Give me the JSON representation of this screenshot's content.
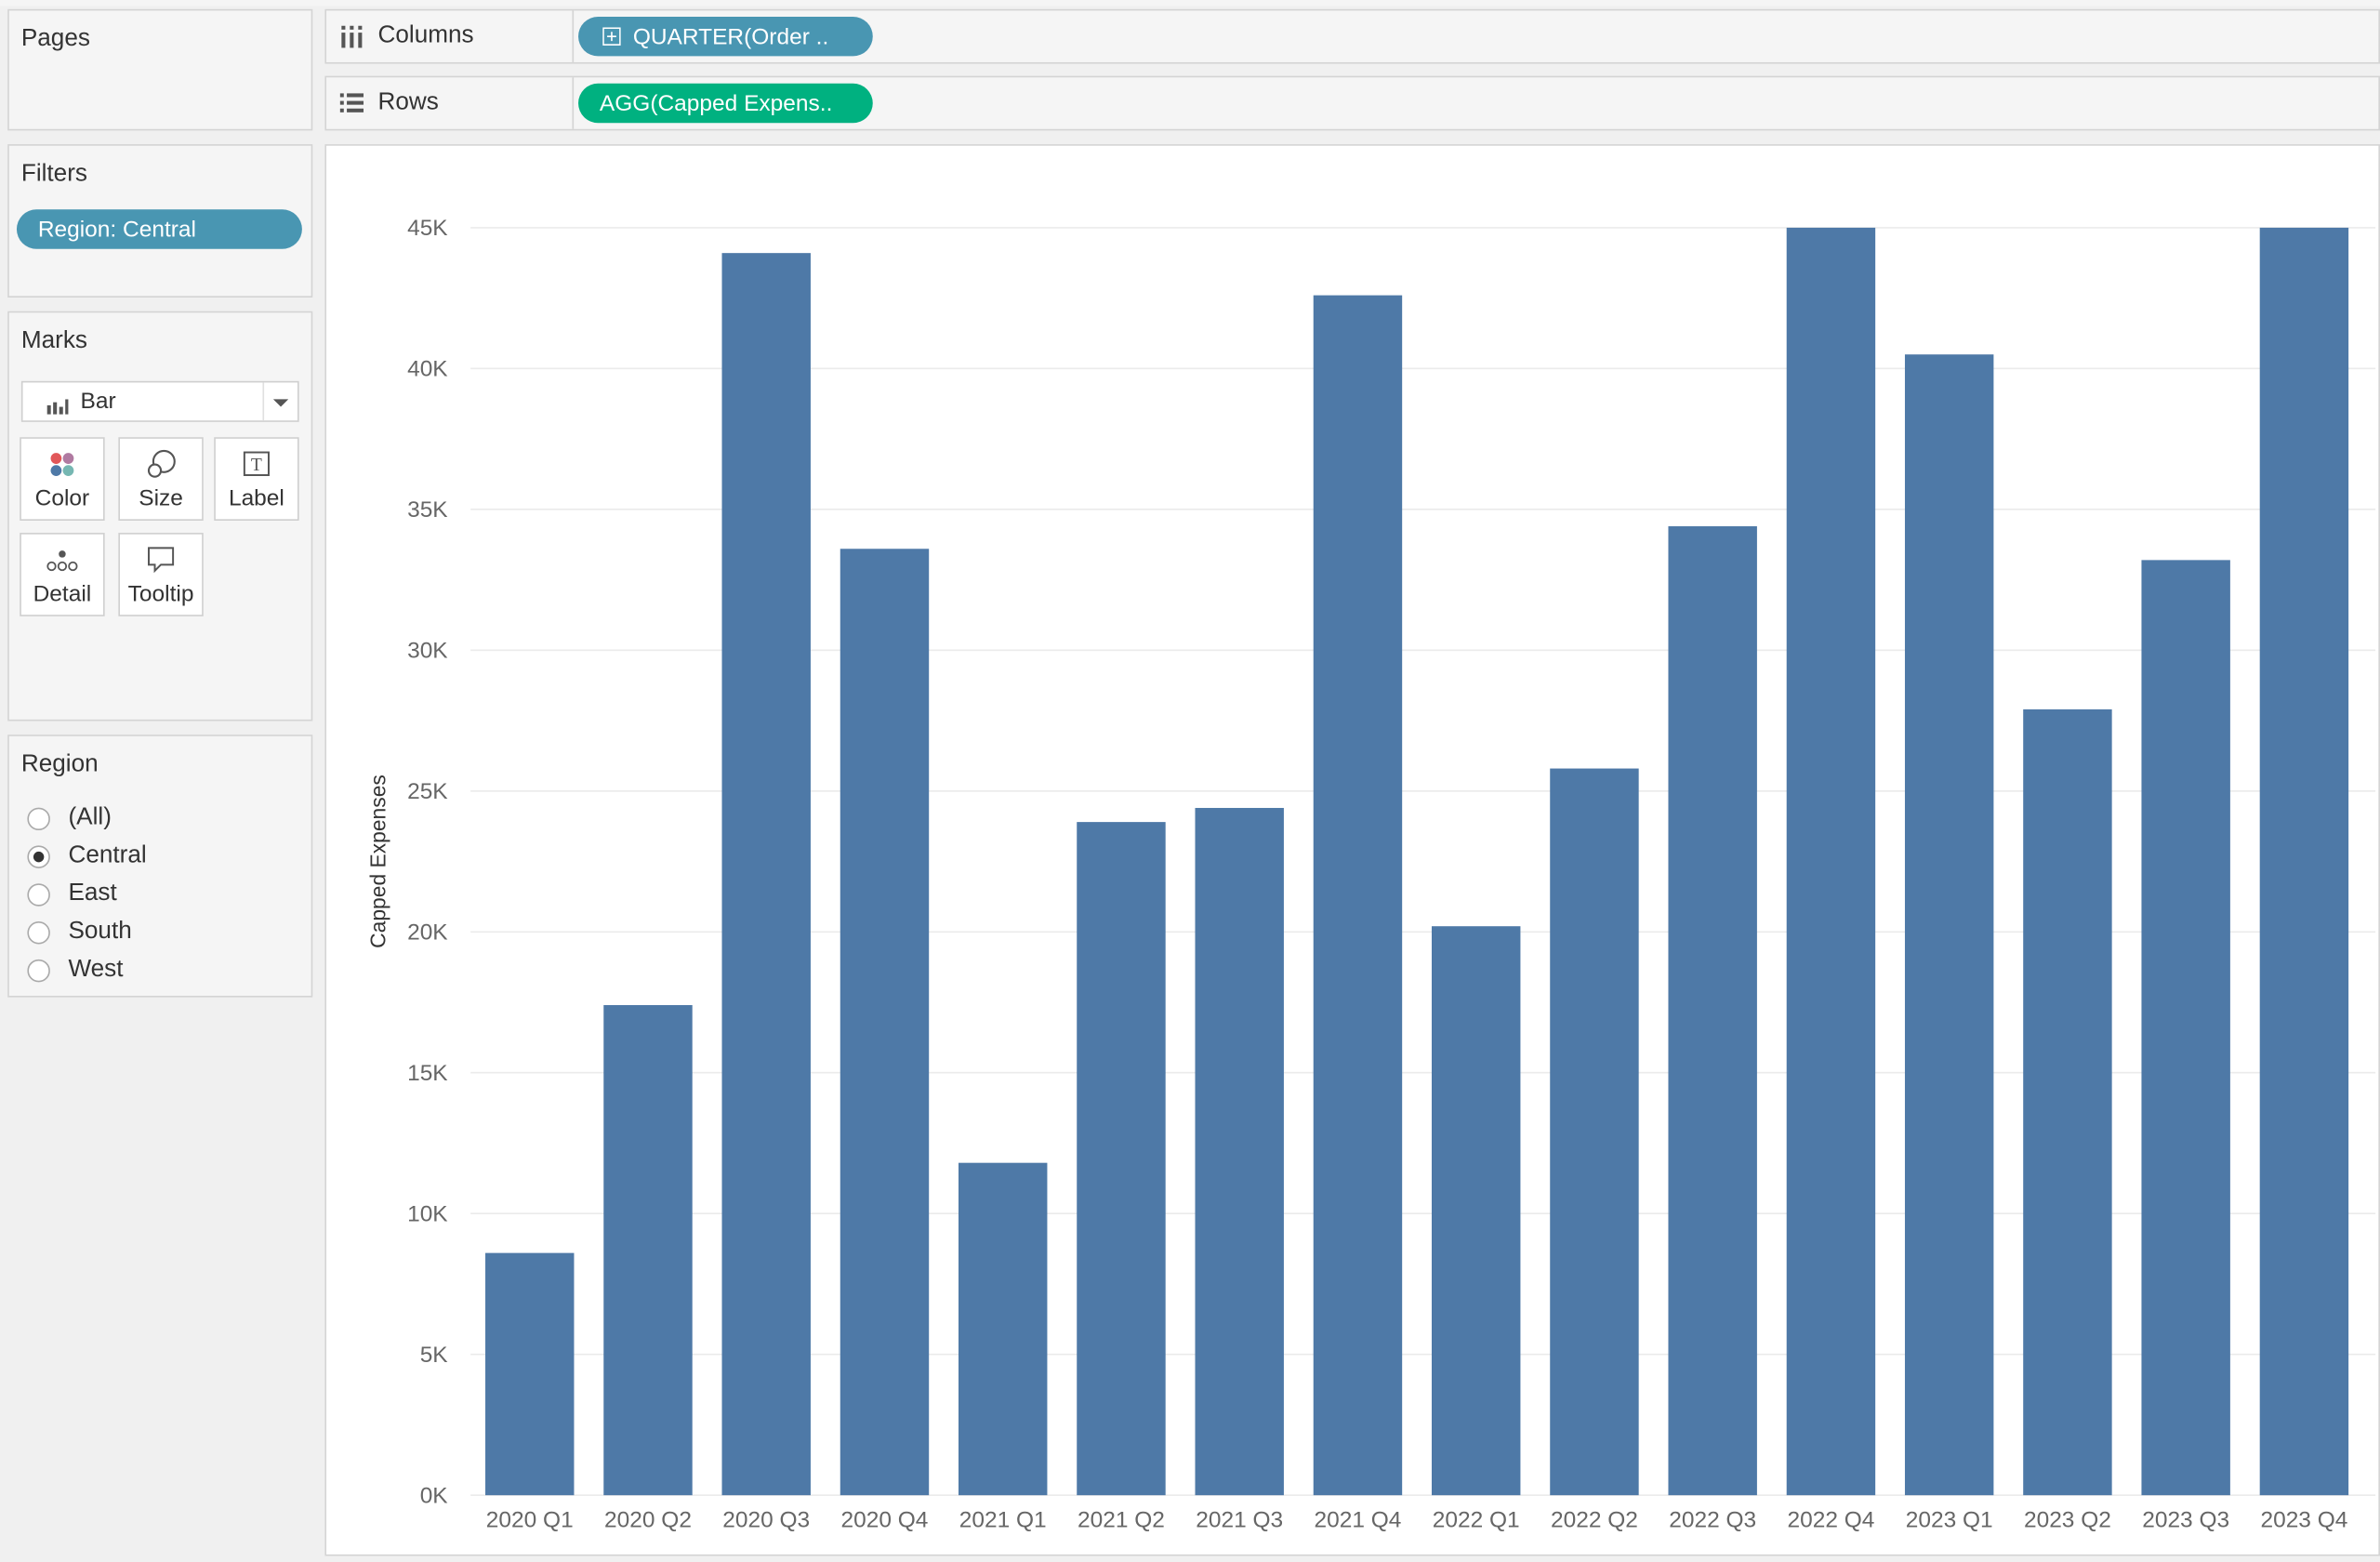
{
  "pages_card": {
    "title": "Pages"
  },
  "filters_card": {
    "title": "Filters",
    "filter_pill": "Region: Central"
  },
  "marks_card": {
    "title": "Marks",
    "mark_type": "Bar",
    "buttons": [
      {
        "label": "Color",
        "icon": "color-icon"
      },
      {
        "label": "Size",
        "icon": "size-icon"
      },
      {
        "label": "Label",
        "icon": "label-icon"
      },
      {
        "label": "Detail",
        "icon": "detail-icon"
      },
      {
        "label": "Tooltip",
        "icon": "tooltip-icon"
      }
    ]
  },
  "region_card": {
    "title": "Region",
    "options": [
      "(All)",
      "Central",
      "East",
      "South",
      "West"
    ],
    "selected": "Central"
  },
  "shelves": {
    "columns_label": "Columns",
    "columns_pill": "QUARTER(Order ..",
    "rows_label": "Rows",
    "rows_pill": "AGG(Capped Expens.."
  },
  "colors": {
    "bar": "#4e79a7",
    "dimension_pill": "#4996b2",
    "measure_pill": "#00b180"
  },
  "chart_data": {
    "type": "bar",
    "ylabel": "Capped Expenses",
    "xlabel": "",
    "categories": [
      "2020 Q1",
      "2020 Q2",
      "2020 Q3",
      "2020 Q4",
      "2021 Q1",
      "2021 Q2",
      "2021 Q3",
      "2021 Q4",
      "2022 Q1",
      "2022 Q2",
      "2022 Q3",
      "2022 Q4",
      "2023 Q1",
      "2023 Q2",
      "2023 Q3",
      "2023 Q4"
    ],
    "values": [
      8600,
      17400,
      44100,
      33600,
      11800,
      23900,
      24400,
      42600,
      20200,
      25800,
      34400,
      45000,
      40500,
      27900,
      33200,
      45000
    ],
    "ylim": [
      0,
      45000
    ],
    "yticks": [
      0,
      5000,
      10000,
      15000,
      20000,
      25000,
      30000,
      35000,
      40000,
      45000
    ],
    "ytick_labels": [
      "0K",
      "5K",
      "10K",
      "15K",
      "20K",
      "25K",
      "30K",
      "35K",
      "40K",
      "45K"
    ],
    "grid": true
  }
}
